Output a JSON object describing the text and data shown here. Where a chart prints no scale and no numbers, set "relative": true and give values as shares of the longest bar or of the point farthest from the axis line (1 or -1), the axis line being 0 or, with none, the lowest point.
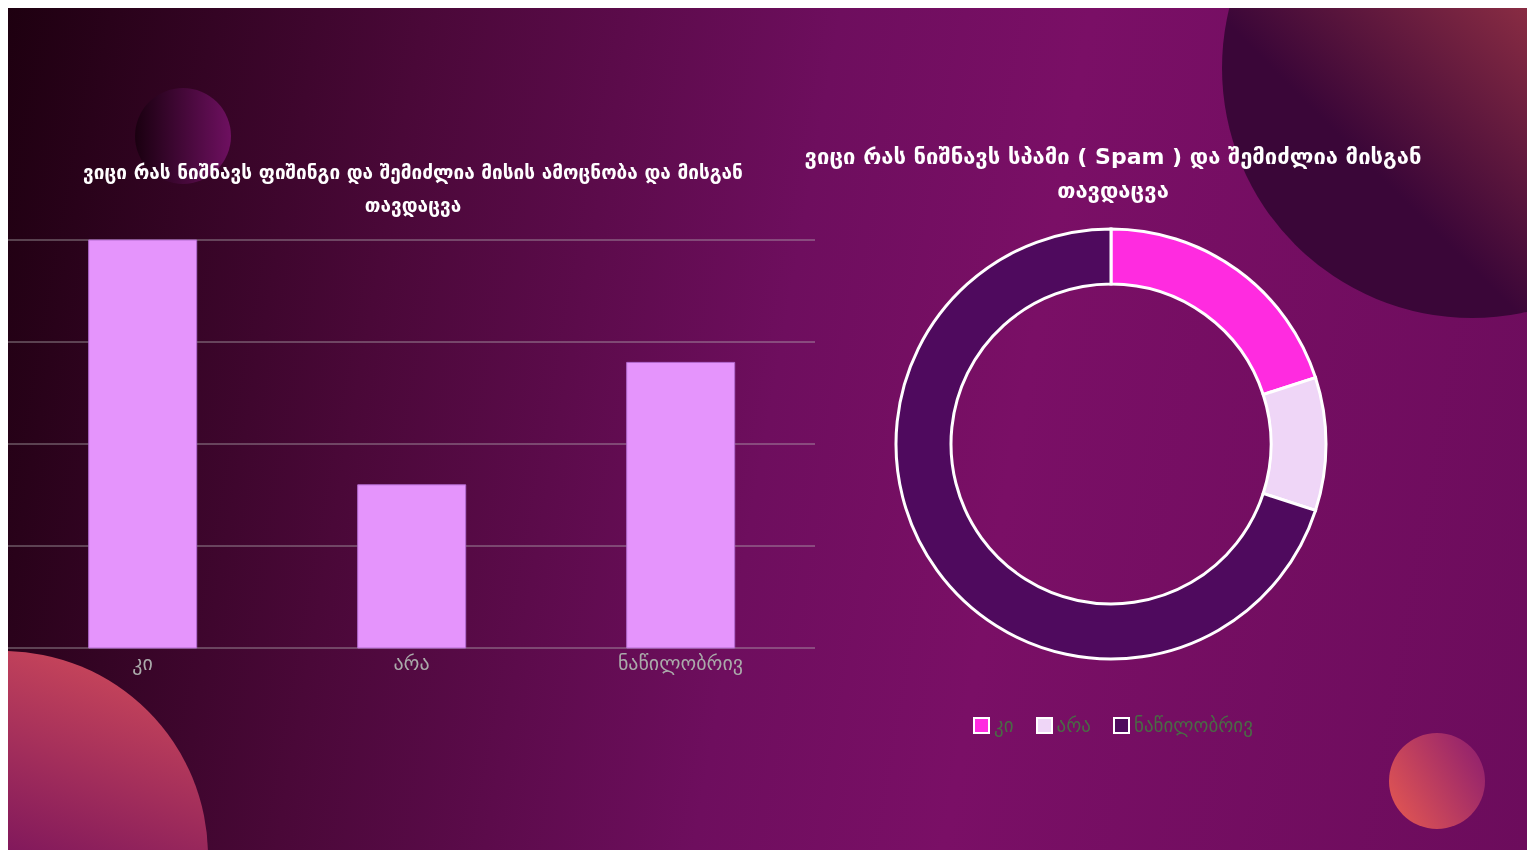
{
  "chart_data": [
    {
      "type": "bar",
      "title": "ვიცი რას ნიშნავს ფიშინგი და შემიძლია მისის ამოცნობა და მისგან თავდაცვა",
      "categories": [
        "კი",
        "არა",
        "ნაწილობრივ"
      ],
      "values": [
        1,
        0.4,
        0.7
      ],
      "color": "#e594fc",
      "relative": true,
      "grid": "y"
    },
    {
      "type": "donut",
      "title": "ვიცი რას ნიშნავს სპამი ( Spam ) და შემიძლია მისგან თავდაცვა",
      "categories": [
        "კი",
        "არა",
        "ნაწილობრივ"
      ],
      "values": [
        20,
        10,
        70
      ],
      "colors": [
        "#ff2be0",
        "#efd6f7",
        "#4f0a5e"
      ],
      "legend": "bottom"
    }
  ]
}
